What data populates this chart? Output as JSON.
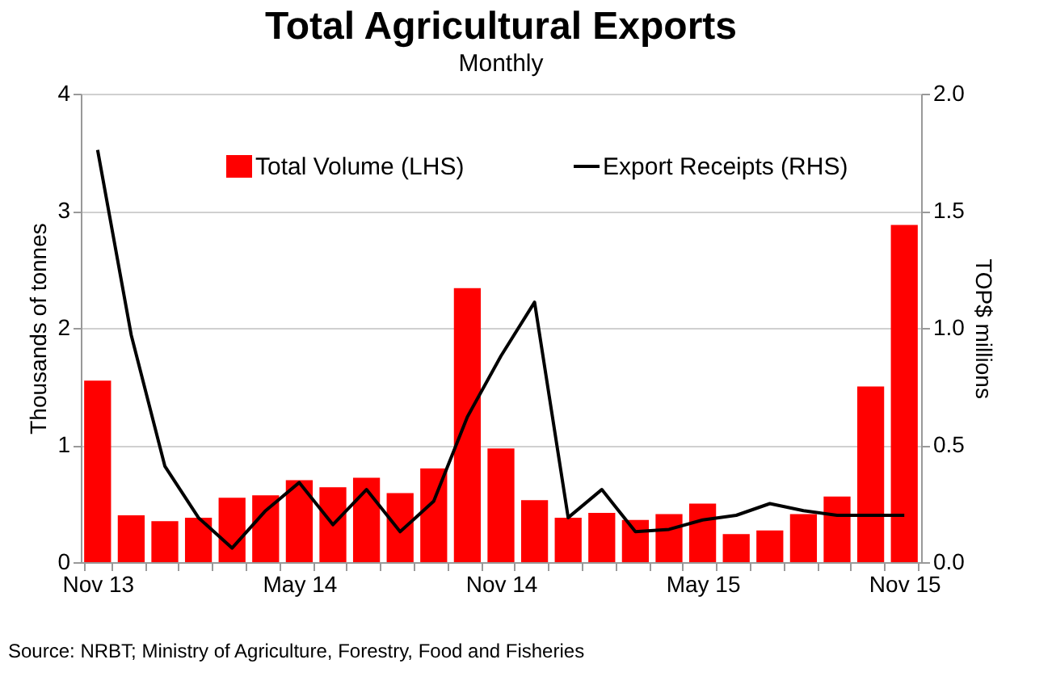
{
  "chart_data": {
    "type": "bar",
    "title": "Total Agricultural Exports",
    "subtitle": "Monthly",
    "ylabel": "Thousands of tonnes",
    "y2label": "TOP$ millions",
    "categories": [
      "Nov 13",
      null,
      null,
      null,
      null,
      null,
      "May 14",
      null,
      null,
      null,
      null,
      null,
      "Nov 14",
      null,
      null,
      null,
      null,
      null,
      "May 15",
      null,
      null,
      null,
      null,
      null,
      "Nov 15"
    ],
    "series": [
      {
        "name": "Total Volume (LHS)",
        "color": "#ff0000",
        "values": [
          1.55,
          0.4,
          0.35,
          0.38,
          0.55,
          0.57,
          0.7,
          0.64,
          0.72,
          0.59,
          0.8,
          2.34,
          0.97,
          0.53,
          0.38,
          0.42,
          0.36,
          0.41,
          0.5,
          0.24,
          0.27,
          0.41,
          0.56,
          1.5,
          2.88
        ]
      },
      {
        "name": "Export Receipts (RHS)",
        "type": "line",
        "axis": "y2",
        "color": "#000000",
        "values": [
          1.76,
          0.97,
          0.41,
          0.19,
          0.06,
          0.22,
          0.34,
          0.16,
          0.31,
          0.13,
          0.26,
          0.62,
          0.88,
          1.11,
          0.19,
          0.31,
          0.13,
          0.14,
          0.18,
          0.2,
          0.25,
          0.22,
          0.2,
          0.2,
          0.2
        ]
      }
    ],
    "ylim": [
      0,
      4
    ],
    "yticks": [
      0,
      1,
      2,
      3,
      4
    ],
    "y2lim": [
      0,
      2
    ],
    "y2ticks": [
      {
        "value": 0,
        "label": "0.0"
      },
      {
        "value": 0.5,
        "label": "0.5"
      },
      {
        "value": 1,
        "label": "1.0"
      },
      {
        "value": 1.5,
        "label": "1.5"
      },
      {
        "value": 2,
        "label": "2.0"
      }
    ],
    "grid": "y",
    "legend": "top",
    "marker": "none",
    "line_style": "solid",
    "annotations": [
      "Source: NRBT; Ministry of Agriculture, Forestry, Food and Fisheries"
    ]
  }
}
